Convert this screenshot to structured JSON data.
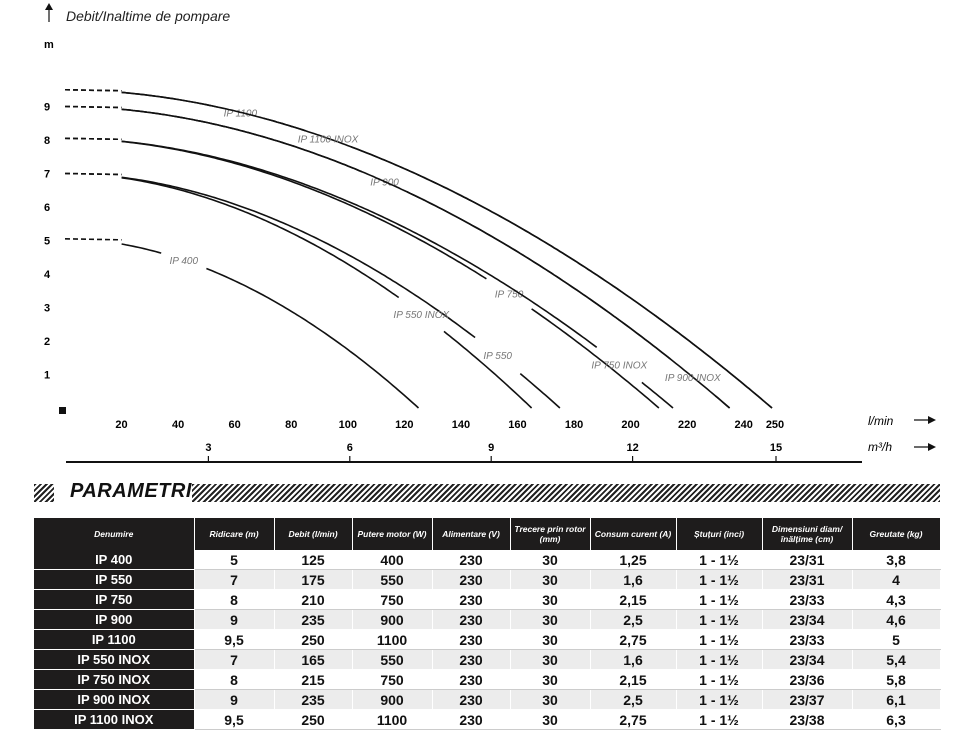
{
  "chart_data": {
    "type": "line",
    "title": "Debit/Inaltime de pompare",
    "ylabel": "m",
    "xlabel": "l/min",
    "xlabel2": "m³/h",
    "xlim": [
      0,
      290
    ],
    "ylim": [
      0,
      10
    ],
    "x_ticks": [
      20,
      40,
      60,
      80,
      100,
      120,
      140,
      160,
      180,
      200,
      220,
      240,
      250
    ],
    "y_ticks": [
      1,
      2,
      3,
      4,
      5,
      6,
      7,
      8,
      9
    ],
    "x2_ticks": [
      {
        "label": "3",
        "lpm": 50
      },
      {
        "label": "6",
        "lpm": 100
      },
      {
        "label": "9",
        "lpm": 150
      },
      {
        "label": "12",
        "lpm": 200
      },
      {
        "label": "15",
        "lpm": 250
      }
    ],
    "series": [
      {
        "name": "IP 400",
        "shutoff": 5.05,
        "max_flow": 125,
        "label_at": 42
      },
      {
        "name": "IP 550",
        "shutoff": 7.0,
        "max_flow": 175,
        "label_at": 153
      },
      {
        "name": "IP 550 INOX",
        "shutoff": 7.0,
        "max_flow": 165,
        "label_at": 126
      },
      {
        "name": "IP 750",
        "shutoff": 8.05,
        "max_flow": 210,
        "label_at": 157
      },
      {
        "name": "IP 750 INOX",
        "shutoff": 8.05,
        "max_flow": 215,
        "label_at": 196
      },
      {
        "name": "IP 900",
        "shutoff": 9.0,
        "max_flow": 235,
        "label_at": 113
      },
      {
        "name": "IP 900 INOX",
        "shutoff": 9.0,
        "max_flow": 235,
        "label_at": 222
      },
      {
        "name": "IP 1100",
        "shutoff": 9.5,
        "max_flow": 250,
        "label_at": 62
      },
      {
        "name": "IP 1100 INOX",
        "shutoff": 9.5,
        "max_flow": 250,
        "label_at": 93
      }
    ]
  },
  "parametri": {
    "title": "PARAMETRI",
    "headers": [
      "Denumire",
      "Ridicare (m)",
      "Debit (l/min)",
      "Putere motor (W)",
      "Alimentare (V)",
      "Trecere prin rotor (mm)",
      "Consum curent (A)",
      "Ștuțuri (inci)",
      "Dimensiuni diam/înălțime (cm)",
      "Greutate (kg)"
    ],
    "rows": [
      [
        "IP 400",
        "5",
        "125",
        "400",
        "230",
        "30",
        "1,25",
        "1 - 1½",
        "23/31",
        "3,8"
      ],
      [
        "IP 550",
        "7",
        "175",
        "550",
        "230",
        "30",
        "1,6",
        "1 - 1½",
        "23/31",
        "4"
      ],
      [
        "IP 750",
        "8",
        "210",
        "750",
        "230",
        "30",
        "2,15",
        "1 - 1½",
        "23/33",
        "4,3"
      ],
      [
        "IP 900",
        "9",
        "235",
        "900",
        "230",
        "30",
        "2,5",
        "1 - 1½",
        "23/34",
        "4,6"
      ],
      [
        "IP 1100",
        "9,5",
        "250",
        "1100",
        "230",
        "30",
        "2,75",
        "1 - 1½",
        "23/33",
        "5"
      ],
      [
        "IP 550 INOX",
        "7",
        "165",
        "550",
        "230",
        "30",
        "1,6",
        "1 - 1½",
        "23/34",
        "5,4"
      ],
      [
        "IP 750 INOX",
        "8",
        "215",
        "750",
        "230",
        "30",
        "2,15",
        "1 - 1½",
        "23/36",
        "5,8"
      ],
      [
        "IP 900 INOX",
        "9",
        "235",
        "900",
        "230",
        "30",
        "2,5",
        "1 - 1½",
        "23/37",
        "6,1"
      ],
      [
        "IP 1100 INOX",
        "9,5",
        "250",
        "1100",
        "230",
        "30",
        "2,75",
        "1 - 1½",
        "23/38",
        "6,3"
      ]
    ]
  }
}
